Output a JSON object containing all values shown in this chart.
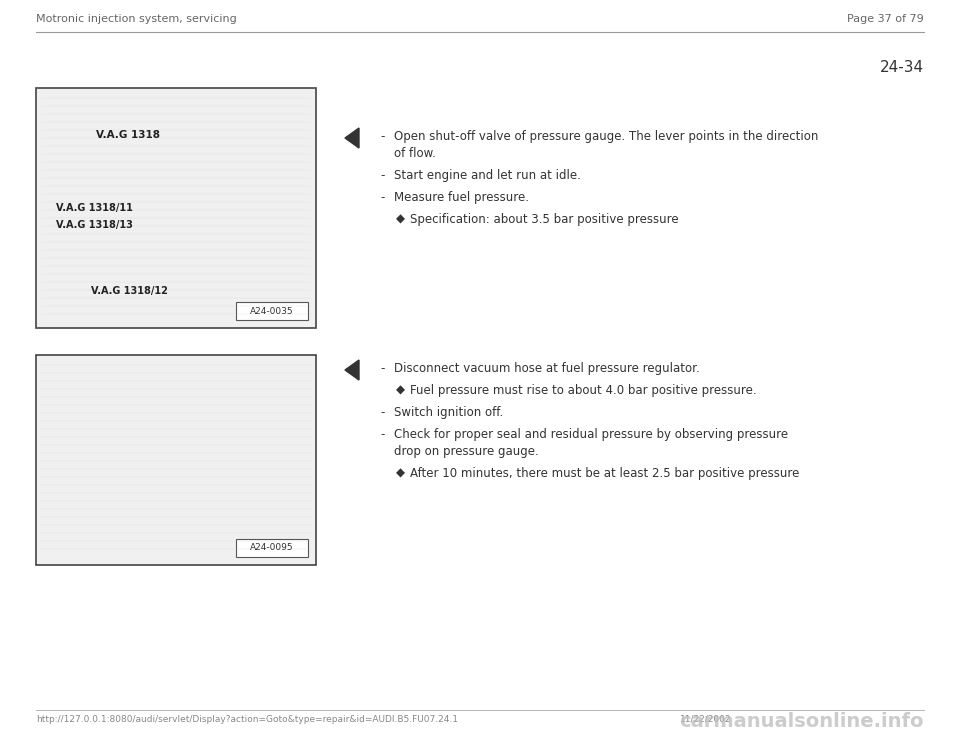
{
  "bg_color": "#ffffff",
  "header_left": "Motronic injection system, servicing",
  "header_right": "Page 37 of 79",
  "section_number": "24-34",
  "footer_url": "http://127.0.0.1:8080/audi/servlet/Display?action=Goto&type=repair&id=AUDI.B5.FU07.24.1",
  "footer_date": "11/22/2002",
  "footer_logo": "carmanualsonline.info",
  "image1_label": "A24-0035",
  "image2_label": "A24-0095",
  "block1_instructions": [
    {
      "type": "dash",
      "text": "Open shut-off valve of pressure gauge. The lever points in the direction\nof flow."
    },
    {
      "type": "dash",
      "text": "Start engine and let run at idle."
    },
    {
      "type": "dash",
      "text": "Measure fuel pressure."
    },
    {
      "type": "bullet",
      "text": "Specification: about 3.5 bar positive pressure"
    }
  ],
  "block2_instructions": [
    {
      "type": "dash",
      "text": "Disconnect vacuum hose at fuel pressure regulator."
    },
    {
      "type": "bullet",
      "text": "Fuel pressure must rise to about 4.0 bar positive pressure."
    },
    {
      "type": "dash",
      "text": "Switch ignition off."
    },
    {
      "type": "dash",
      "text": "Check for proper seal and residual pressure by observing pressure\ndrop on pressure gauge."
    },
    {
      "type": "bullet",
      "text": "After 10 minutes, there must be at least 2.5 bar positive pressure"
    }
  ]
}
